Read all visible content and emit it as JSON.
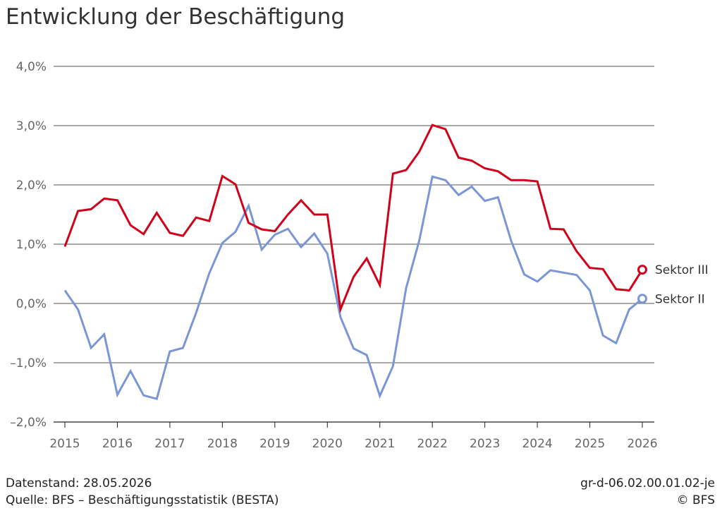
{
  "title": "Entwicklung der Beschäftigung",
  "footer": {
    "datenstand": "Datenstand: 28.05.2026",
    "quelle": "Quelle: BFS – Beschäftigungsstatistik (BESTA)",
    "code": "gr-d-06.02.00.01.02-je",
    "copyright": "© BFS"
  },
  "chart_data": {
    "type": "line",
    "title": "Entwicklung der Beschäftigung",
    "xlabel": "",
    "ylabel": "",
    "xlim": [
      2015,
      2026
    ],
    "ylim": [
      -2.0,
      4.0
    ],
    "x_ticks": [
      "2015",
      "2016",
      "2017",
      "2018",
      "2019",
      "2020",
      "2021",
      "2022",
      "2023",
      "2024",
      "2025",
      "2026"
    ],
    "y_ticks": [
      "–2,0%",
      "–1,0%",
      "0,0%",
      "1,0%",
      "2,0%",
      "3,0%",
      "4,0%"
    ],
    "y_tick_values": [
      -2,
      -1,
      0,
      1,
      2,
      3,
      4
    ],
    "grid": "horizontal",
    "legend": "right-end labels",
    "x": [
      2015.0,
      2015.25,
      2015.5,
      2015.75,
      2016.0,
      2016.25,
      2016.5,
      2016.75,
      2017.0,
      2017.25,
      2017.5,
      2017.75,
      2018.0,
      2018.25,
      2018.5,
      2018.75,
      2019.0,
      2019.25,
      2019.5,
      2019.75,
      2020.0,
      2020.25,
      2020.5,
      2020.75,
      2021.0,
      2021.25,
      2021.5,
      2021.75,
      2022.0,
      2022.25,
      2022.5,
      2022.75,
      2023.0,
      2023.25,
      2023.5,
      2023.75,
      2024.0,
      2024.25,
      2024.5,
      2024.75,
      2025.0,
      2025.25,
      2025.5,
      2025.75,
      2026.0
    ],
    "series": [
      {
        "name": "Sektor III",
        "color": "#d0021b",
        "values": [
          0.96,
          1.56,
          1.59,
          1.77,
          1.74,
          1.32,
          1.17,
          1.53,
          1.19,
          1.14,
          1.45,
          1.39,
          2.15,
          2.01,
          1.36,
          1.25,
          1.22,
          1.5,
          1.74,
          1.5,
          1.5,
          -0.1,
          0.45,
          0.76,
          0.31,
          2.19,
          2.25,
          2.56,
          3.01,
          2.94,
          2.46,
          2.41,
          2.28,
          2.23,
          2.08,
          2.08,
          2.06,
          1.26,
          1.25,
          0.88,
          0.6,
          0.58,
          0.24,
          0.22,
          0.57
        ]
      },
      {
        "name": "Sektor II",
        "color": "#7b96d6",
        "values": [
          0.22,
          -0.1,
          -0.75,
          -0.52,
          -1.54,
          -1.14,
          -1.55,
          -1.61,
          -0.81,
          -0.75,
          -0.16,
          0.51,
          1.02,
          1.21,
          1.65,
          0.91,
          1.16,
          1.26,
          0.95,
          1.18,
          0.84,
          -0.23,
          -0.76,
          -0.87,
          -1.56,
          -1.06,
          0.26,
          1.06,
          2.14,
          2.08,
          1.83,
          1.97,
          1.73,
          1.79,
          1.06,
          0.49,
          0.37,
          0.56,
          0.52,
          0.48,
          0.22,
          -0.54,
          -0.67,
          -0.1,
          0.08
        ]
      }
    ]
  }
}
